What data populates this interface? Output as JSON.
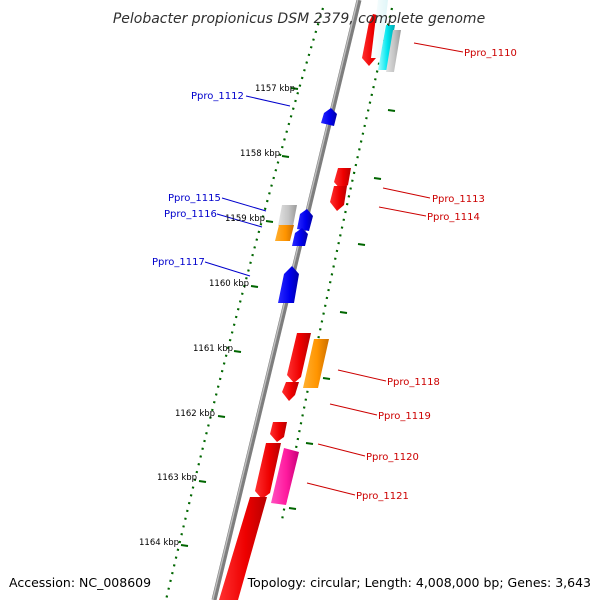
{
  "title": "Pelobacter propionicus DSM 2379, complete genome",
  "accession": "Accession: NC_008609",
  "summary": "Topology: circular; Length: 4,008,000 bp; Genes: 3,643",
  "colors": {
    "forward_label": "#0000cc",
    "reverse_label": "#cc0000",
    "tick": "#006600",
    "backbone": "#808080"
  },
  "kbp_ticks": [
    "1157 kbp",
    "1158 kbp",
    "1159 kbp",
    "1160 kbp",
    "1161 kbp",
    "1162 kbp",
    "1163 kbp",
    "1164 kbp"
  ],
  "gene_labels": {
    "forward": [
      "Ppro_1112",
      "Ppro_1115",
      "Ppro_1116",
      "Ppro_1117"
    ],
    "reverse": [
      "Ppro_1110",
      "Ppro_1113",
      "Ppro_1114",
      "Ppro_1118",
      "Ppro_1119",
      "Ppro_1120",
      "Ppro_1121"
    ]
  }
}
